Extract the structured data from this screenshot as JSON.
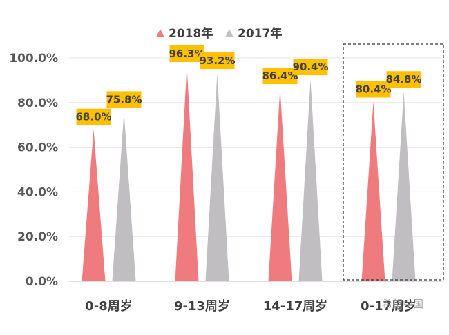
{
  "chart_data": {
    "type": "bar",
    "bar_shape": "triangle",
    "categories": [
      "0-8周岁",
      "9-13周岁",
      "14-17周岁",
      "0-17周岁"
    ],
    "series": [
      {
        "name": "2018年",
        "color": "#ef7b7f",
        "values": [
          68.0,
          96.3,
          86.4,
          80.4
        ],
        "labels": [
          "68.0%",
          "96.3%",
          "86.4%",
          "80.4%"
        ]
      },
      {
        "name": "2017年",
        "color": "#c0bec0",
        "values": [
          75.8,
          93.2,
          90.4,
          84.8
        ],
        "labels": [
          "75.8%",
          "93.2%",
          "90.4%",
          "84.8%"
        ]
      }
    ],
    "ylim": [
      0,
      100
    ],
    "yticks": [
      "0.0%",
      "20.0%",
      "40.0%",
      "60.0%",
      "80.0%",
      "100.0%"
    ],
    "grid": true,
    "legend_position": "top-center",
    "label_box_color": "#ffc000",
    "highlight_category": "0-17周岁",
    "title": "",
    "xlabel": "",
    "ylabel": ""
  },
  "watermark": "希望中国"
}
